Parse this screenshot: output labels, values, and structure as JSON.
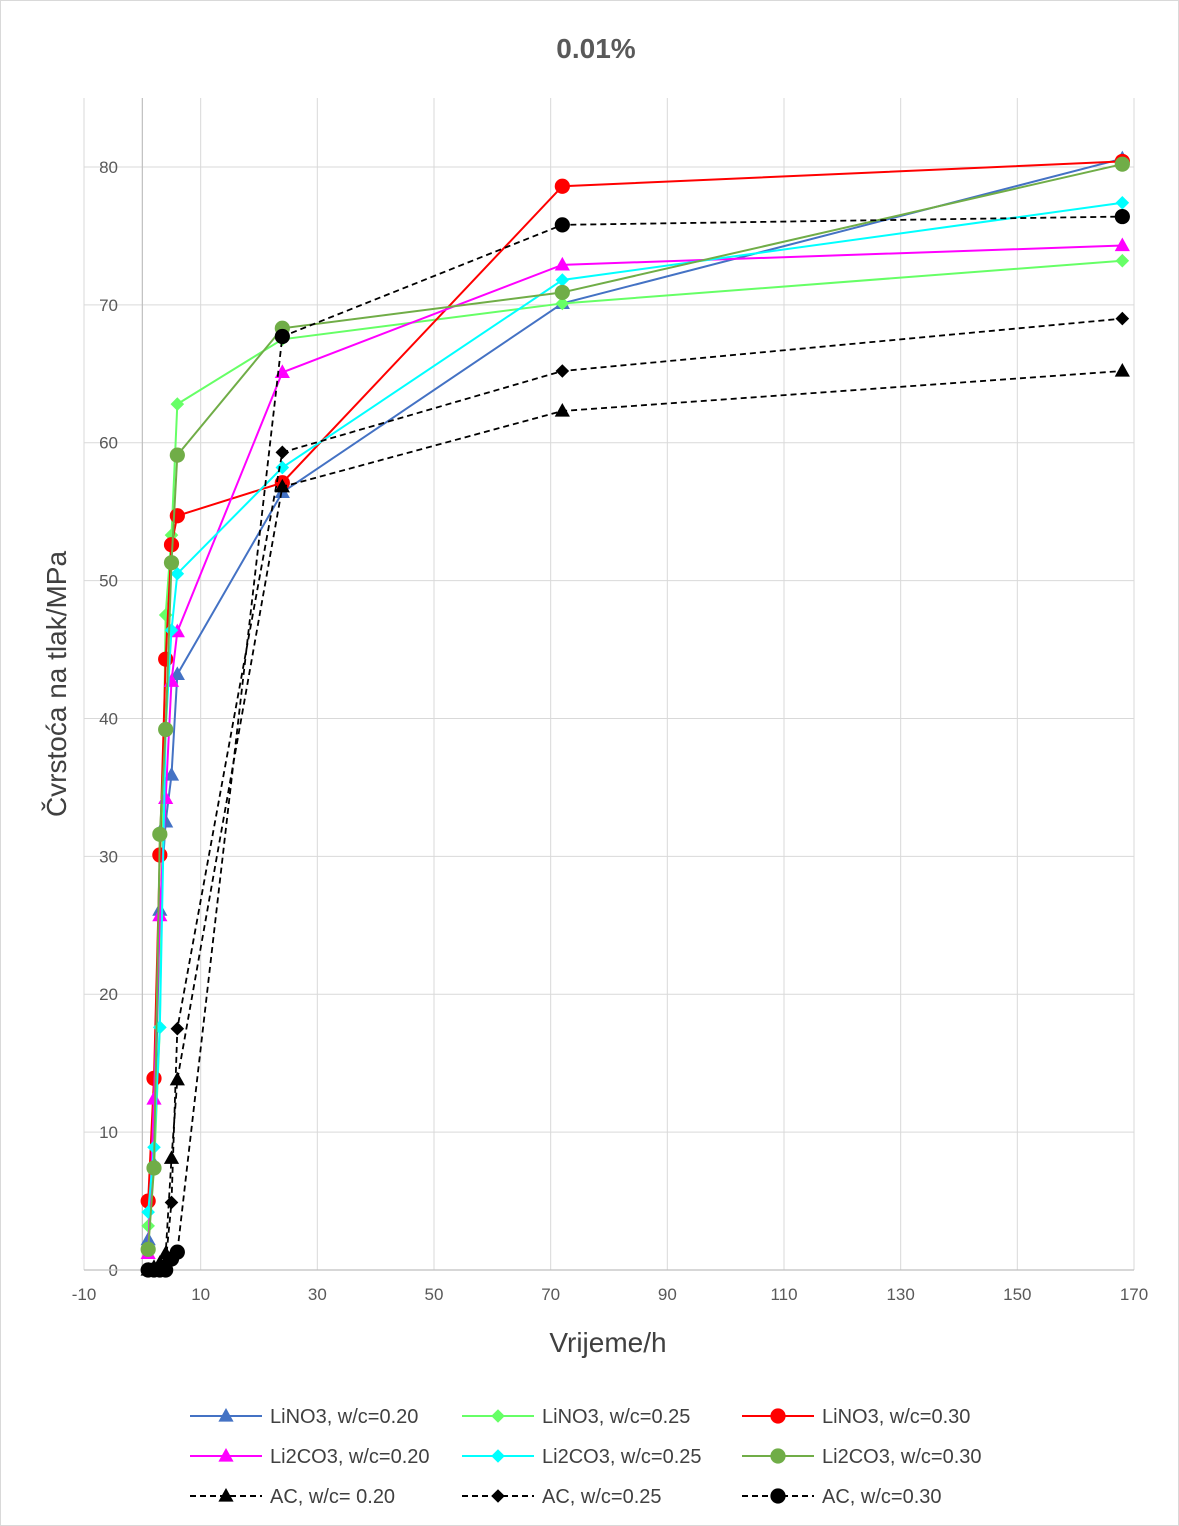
{
  "chart_data": {
    "type": "line",
    "title": "0.01%",
    "xlabel": "Vrijeme/h",
    "ylabel": "Čvrstoća na tlak/MPa",
    "xlim": [
      -10,
      170
    ],
    "ylim": [
      0,
      85
    ],
    "x_ticks": [
      -10,
      10,
      30,
      50,
      70,
      90,
      110,
      130,
      150,
      170
    ],
    "y_ticks": [
      0,
      10,
      20,
      30,
      40,
      50,
      60,
      70,
      80
    ],
    "grid": true,
    "legend_position": "bottom",
    "series": [
      {
        "name": "LiNO3, w/c=0.20",
        "color": "#4472c4",
        "marker": "triangle",
        "dash": false,
        "x": [
          1,
          2,
          3,
          4,
          5,
          6,
          24,
          72,
          168
        ],
        "y": [
          2.2,
          7.7,
          26.1,
          32.5,
          35.9,
          43.2,
          56.4,
          70.1,
          80.6
        ]
      },
      {
        "name": "LiNO3, w/c=0.25",
        "color": "#66ff66",
        "marker": "diamond",
        "dash": false,
        "x": [
          1,
          2,
          3,
          4,
          5,
          6,
          24,
          72,
          168
        ],
        "y": [
          3.2,
          7.3,
          17.6,
          47.5,
          53.3,
          62.8,
          67.5,
          70.1,
          73.2
        ]
      },
      {
        "name": "LiNO3, w/c=0.30",
        "color": "#ff0000",
        "marker": "circle",
        "dash": false,
        "x": [
          1,
          2,
          3,
          4,
          5,
          6,
          24,
          72,
          168
        ],
        "y": [
          5.0,
          13.9,
          30.1,
          44.3,
          52.6,
          54.7,
          57.1,
          78.6,
          80.4
        ]
      },
      {
        "name": "Li2CO3, w/c=0.20",
        "color": "#ff00ff",
        "marker": "triangle",
        "dash": false,
        "x": [
          1,
          2,
          3,
          4,
          5,
          6,
          24,
          72,
          168
        ],
        "y": [
          1.2,
          12.4,
          25.7,
          34.2,
          42.7,
          46.3,
          65.1,
          72.9,
          74.3
        ]
      },
      {
        "name": "Li2CO3, w/c=0.25",
        "color": "#00ffff",
        "marker": "diamond",
        "dash": false,
        "x": [
          1,
          2,
          3,
          4,
          5,
          6,
          24,
          72,
          168
        ],
        "y": [
          4.2,
          8.9,
          17.6,
          39.2,
          46.4,
          50.5,
          58.2,
          71.8,
          77.4
        ]
      },
      {
        "name": "Li2CO3, w/c=0.30",
        "color": "#70ad47",
        "marker": "circle",
        "dash": false,
        "x": [
          1,
          2,
          3,
          4,
          5,
          6,
          24,
          72,
          168
        ],
        "y": [
          1.5,
          7.4,
          31.6,
          39.2,
          51.3,
          59.1,
          68.3,
          70.9,
          80.2
        ]
      },
      {
        "name": "AC, w/c= 0.20",
        "color": "#000000",
        "marker": "triangle",
        "dash": true,
        "x": [
          1,
          2,
          3,
          4,
          5,
          6,
          24,
          72,
          168
        ],
        "y": [
          0,
          0.2,
          0.5,
          1.2,
          8.1,
          13.8,
          56.8,
          62.3,
          65.2
        ]
      },
      {
        "name": "AC, w/c=0.25",
        "color": "#000000",
        "marker": "diamond",
        "dash": true,
        "x": [
          1,
          2,
          3,
          4,
          5,
          6,
          24,
          72,
          168
        ],
        "y": [
          0,
          0,
          0.2,
          0.5,
          4.9,
          17.5,
          59.3,
          65.2,
          69.0
        ]
      },
      {
        "name": "AC, w/c=0.30",
        "color": "#000000",
        "marker": "circle",
        "dash": true,
        "x": [
          1,
          2,
          3,
          4,
          5,
          6,
          24,
          72,
          168
        ],
        "y": [
          0,
          0,
          0,
          0,
          0.8,
          1.3,
          67.7,
          75.8,
          76.4
        ]
      }
    ]
  }
}
